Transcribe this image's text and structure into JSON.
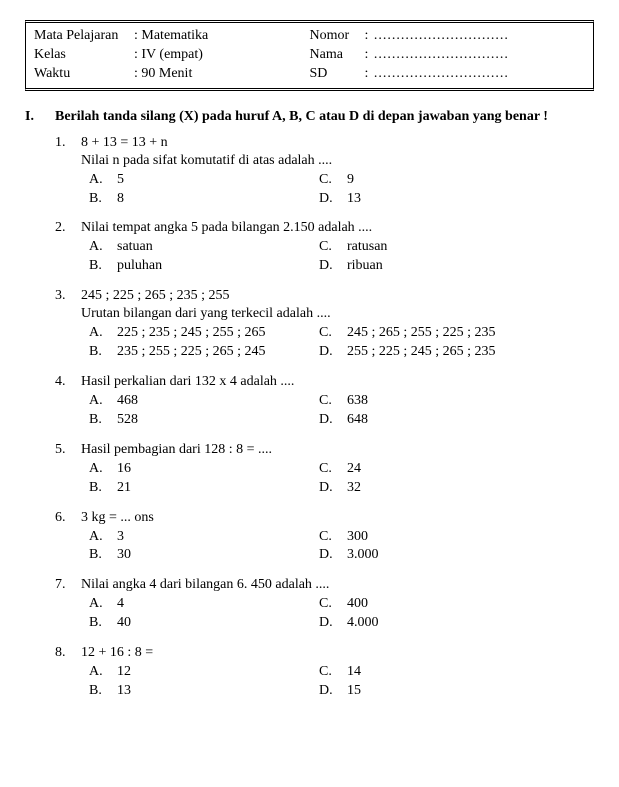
{
  "header": {
    "left": {
      "l1": "Mata Pelajaran",
      "v1": ": Matematika",
      "l2": "Kelas",
      "v2": ": IV (empat)",
      "l3": "Waktu",
      "v3": ": 90 Menit"
    },
    "right": {
      "l1": "Nomor",
      "v1": ": ..............................",
      "l2": "Nama",
      "v2": ": ..............................",
      "l3": "SD",
      "v3": ": .............................."
    }
  },
  "section": {
    "num": "I.",
    "instr": "Berilah tanda silang (X) pada huruf A, B, C atau D di depan jawaban yang benar !"
  },
  "q": [
    {
      "n": "1.",
      "lines": [
        "8  +  13  =   13  +  n",
        "Nilai n pada sifat komutatif di atas adalah ...."
      ],
      "a": "5",
      "b": "8",
      "c": "9",
      "d": "13"
    },
    {
      "n": "2.",
      "lines": [
        "Nilai tempat angka 5 pada bilangan 2.150 adalah ...."
      ],
      "a": "satuan",
      "b": "puluhan",
      "c": "ratusan",
      "d": "ribuan"
    },
    {
      "n": "3.",
      "lines": [
        "245 ;  225 ;  265 ;  235 ;  255",
        "Urutan bilangan dari yang terkecil adalah ...."
      ],
      "a": "225 ; 235 ; 245 ; 255 ; 265",
      "b": "235 ; 255 ; 225 ; 265 ; 245",
      "c": "245 ; 265 ; 255 ; 225 ; 235",
      "d": "255 ; 225 ; 245 ; 265 ; 235"
    },
    {
      "n": "4.",
      "lines": [
        "Hasil perkalian dari 132 x 4 adalah ...."
      ],
      "a": "468",
      "b": "528",
      "c": "638",
      "d": "648"
    },
    {
      "n": "5.",
      "lines": [
        "Hasil pembagian dari 128 : 8 = ...."
      ],
      "a": "16",
      "b": "21",
      "c": "24",
      "d": "32"
    },
    {
      "n": "6.",
      "lines": [
        "3 kg = ... ons"
      ],
      "a": "3",
      "b": "30",
      "c": "300",
      "d": "3.000"
    },
    {
      "n": "7.",
      "lines": [
        "Nilai angka 4 dari bilangan 6. 450 adalah ...."
      ],
      "a": "4",
      "b": "40",
      "c": "400",
      "d": "4.000"
    },
    {
      "n": "8.",
      "lines": [
        "12 + 16 : 8 ="
      ],
      "a": "12",
      "b": "13",
      "c": "14",
      "d": "15"
    }
  ],
  "labels": {
    "A": "A.",
    "B": "B.",
    "C": "C.",
    "D": "D."
  }
}
